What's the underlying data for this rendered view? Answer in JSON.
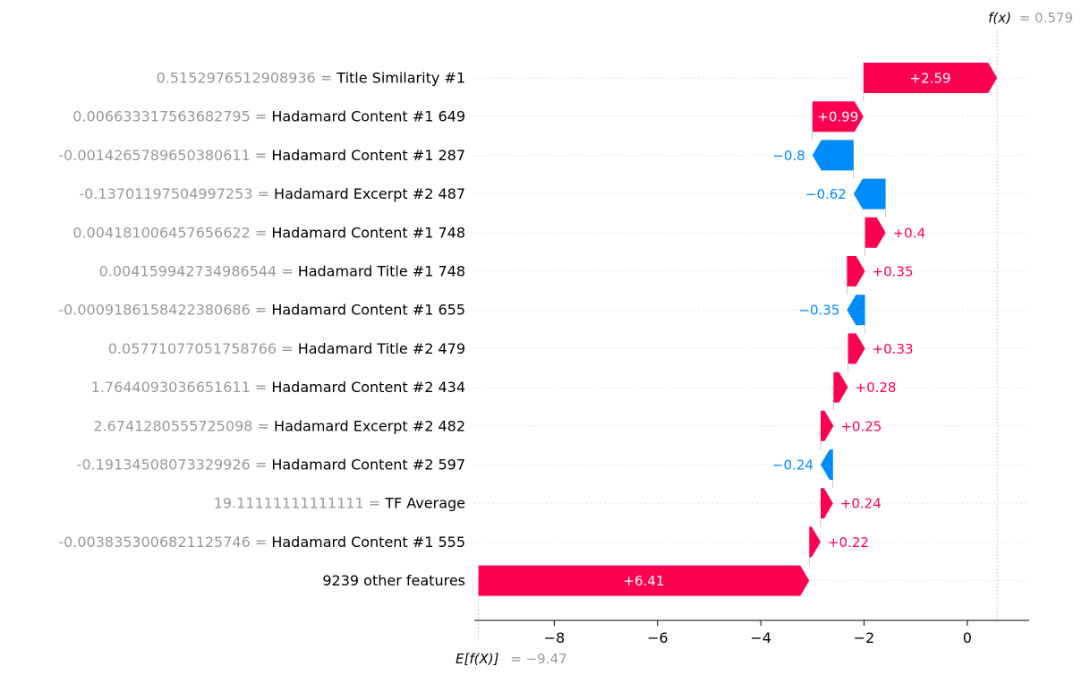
{
  "chart_data": {
    "type": "waterfall",
    "fx_label": "f(x)",
    "fx_value": "= 0.579",
    "fx": 0.579,
    "base_label": "E[f(X)]",
    "base_value_text": "= −9.47",
    "base_value": -9.47,
    "xlim": [
      -9.55,
      1.2
    ],
    "xticks": [
      -8,
      -6,
      -4,
      -2,
      0
    ],
    "xtick_labels": [
      "−8",
      "−6",
      "−4",
      "−2",
      "0"
    ],
    "colors": {
      "positive": "#ff0051",
      "negative": "#008bfb",
      "muted": "#999999"
    },
    "features": [
      {
        "value": "0.5152976512908936",
        "sep": " = ",
        "name": "Title Similarity #1",
        "contribution": 2.59,
        "label": "+2.59"
      },
      {
        "value": "0.006633317563682795",
        "sep": " = ",
        "name": "Hadamard Content #1 649",
        "contribution": 0.99,
        "label": "+0.99"
      },
      {
        "value": "-0.0014265789650380611",
        "sep": " = ",
        "name": "Hadamard Content #1 287",
        "contribution": -0.8,
        "label": "−0.8"
      },
      {
        "value": "-0.13701197504997253",
        "sep": " = ",
        "name": "Hadamard Excerpt #2 487",
        "contribution": -0.62,
        "label": "−0.62"
      },
      {
        "value": "0.004181006457656622",
        "sep": " = ",
        "name": "Hadamard Content #1 748",
        "contribution": 0.4,
        "label": "+0.4"
      },
      {
        "value": "0.004159942734986544",
        "sep": " = ",
        "name": "Hadamard Title #1 748",
        "contribution": 0.35,
        "label": "+0.35"
      },
      {
        "value": "-0.0009186158422380686",
        "sep": " = ",
        "name": "Hadamard Content #1 655",
        "contribution": -0.35,
        "label": "−0.35"
      },
      {
        "value": "0.05771077051758766",
        "sep": " = ",
        "name": "Hadamard Title #2 479",
        "contribution": 0.33,
        "label": "+0.33"
      },
      {
        "value": "1.7644093036651611",
        "sep": " = ",
        "name": "Hadamard Content #2 434",
        "contribution": 0.28,
        "label": "+0.28"
      },
      {
        "value": "2.6741280555725098",
        "sep": " = ",
        "name": "Hadamard Excerpt #2 482",
        "contribution": 0.25,
        "label": "+0.25"
      },
      {
        "value": "-0.19134508073329926",
        "sep": " = ",
        "name": "Hadamard Content #2 597",
        "contribution": -0.24,
        "label": "−0.24"
      },
      {
        "value": "19.11111111111111",
        "sep": " = ",
        "name": "TF Average",
        "contribution": 0.24,
        "label": "+0.24"
      },
      {
        "value": "-0.0038353006821125746",
        "sep": " = ",
        "name": "Hadamard Content #1 555",
        "contribution": 0.22,
        "label": "+0.22"
      },
      {
        "value": "",
        "sep": "",
        "name": "9239 other features",
        "contribution": 6.41,
        "label": "+6.41"
      }
    ]
  }
}
